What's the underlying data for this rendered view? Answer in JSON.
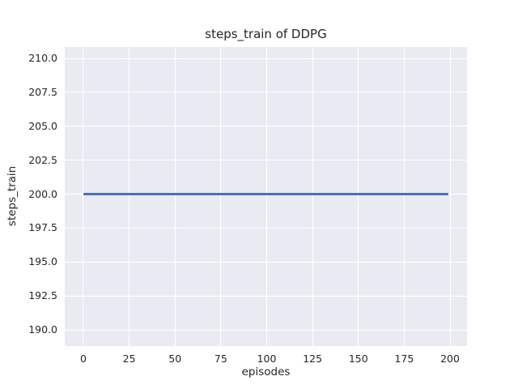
{
  "colors": {
    "figure_background": "#ffffff",
    "plot_background": "#eaeaf2",
    "grid": "#ffffff",
    "text": "#262626",
    "line": "#4c72b0"
  },
  "chart_data": {
    "type": "line",
    "title": "steps_train of DDPG",
    "xlabel": "episodes",
    "ylabel": "steps_train",
    "xlim": [
      -10.15,
      209.25
    ],
    "ylim": [
      188.81,
      210.84
    ],
    "grid": true,
    "legend": false,
    "xticks": {
      "values": [
        0,
        25,
        50,
        75,
        100,
        125,
        150,
        175,
        200
      ],
      "labels": [
        "0",
        "25",
        "50",
        "75",
        "100",
        "125",
        "150",
        "175",
        "200"
      ]
    },
    "yticks": {
      "values": [
        190.0,
        192.5,
        195.0,
        197.5,
        200.0,
        202.5,
        205.0,
        207.5,
        210.0
      ],
      "labels": [
        "190.0",
        "192.5",
        "195.0",
        "197.5",
        "200.0",
        "202.5",
        "205.0",
        "207.5",
        "210.0"
      ]
    },
    "series": [
      {
        "name": "steps_train",
        "x": [
          0,
          199
        ],
        "y": [
          200,
          200
        ],
        "color": "#4c72b0"
      }
    ]
  }
}
